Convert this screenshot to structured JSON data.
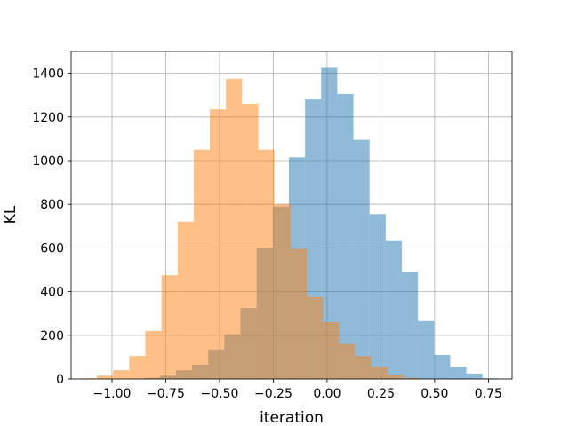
{
  "chart_data": {
    "type": "bar",
    "title": "",
    "xlabel": "iteration",
    "ylabel": "KL",
    "xlim": [
      -1.19,
      0.86
    ],
    "ylim": [
      0,
      1500
    ],
    "grid": true,
    "xticks": [
      -1.0,
      -0.75,
      -0.5,
      -0.25,
      0.0,
      0.25,
      0.5,
      0.75
    ],
    "xtick_labels": [
      "−1.00",
      "−0.75",
      "−0.50",
      "−0.25",
      "0.00",
      "0.25",
      "0.50",
      "0.75"
    ],
    "yticks": [
      0,
      200,
      400,
      600,
      800,
      1000,
      1200,
      1400
    ],
    "ytick_labels": [
      "0",
      "200",
      "400",
      "600",
      "800",
      "1000",
      "1200",
      "1400"
    ],
    "series": [
      {
        "color": "#1f77b4",
        "bin_edges": [
          -0.8525,
          -0.7775,
          -0.7025,
          -0.6275,
          -0.5525,
          -0.4775,
          -0.4025,
          -0.3275,
          -0.2525,
          -0.1775,
          -0.1025,
          -0.0275,
          0.0475,
          0.1225,
          0.1975,
          0.2725,
          0.3475,
          0.4225,
          0.4975,
          0.5725,
          0.6475,
          0.7225,
          0.7975
        ],
        "values": [
          5,
          15,
          40,
          65,
          135,
          205,
          325,
          600,
          790,
          1015,
          1280,
          1425,
          1305,
          1095,
          755,
          635,
          490,
          265,
          110,
          55,
          25,
          3
        ]
      },
      {
        "color": "#ff7f0e",
        "bin_edges": [
          -1.145,
          -1.07,
          -0.995,
          -0.92,
          -0.845,
          -0.77,
          -0.695,
          -0.62,
          -0.545,
          -0.47,
          -0.395,
          -0.32,
          -0.245,
          -0.17,
          -0.095,
          -0.02,
          0.055,
          0.13,
          0.205,
          0.28,
          0.355,
          0.43
        ],
        "values": [
          3,
          15,
          40,
          105,
          220,
          475,
          720,
          1050,
          1235,
          1375,
          1260,
          1050,
          800,
          595,
          375,
          260,
          160,
          105,
          55,
          20,
          5
        ]
      }
    ]
  }
}
